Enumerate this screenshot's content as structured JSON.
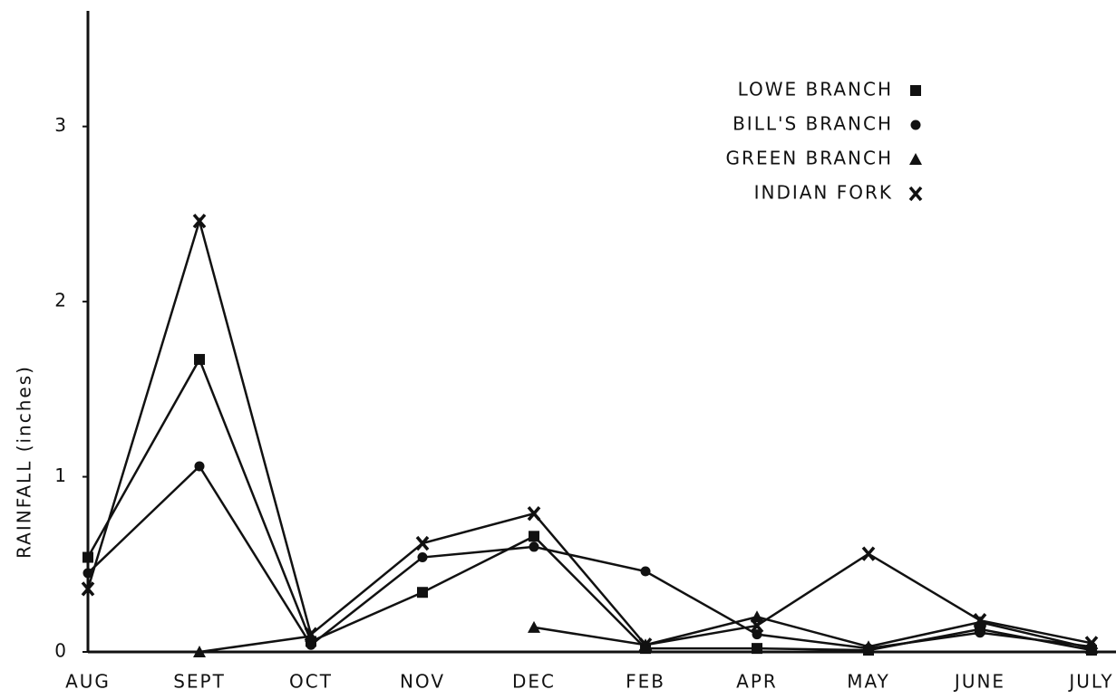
{
  "chart_data": {
    "type": "line",
    "y_label": "RAINFALL (inches)",
    "categories": [
      "AUG",
      "SEPT",
      "OCT",
      "NOV",
      "DEC",
      "FEB",
      "APR",
      "MAY",
      "JUNE",
      "JULY"
    ],
    "series": [
      {
        "name": "LOWE BRANCH",
        "color": "#111111",
        "marker": "square",
        "values": [
          0.54,
          1.67,
          0.06,
          0.34,
          0.66,
          0.02,
          0.02,
          0.01,
          0.13,
          0.01
        ]
      },
      {
        "name": "BILL'S BRANCH",
        "color": "#111111",
        "marker": "circle",
        "values": [
          0.45,
          1.06,
          0.04,
          0.54,
          0.6,
          0.46,
          0.1,
          0.02,
          0.11,
          0.03
        ]
      },
      {
        "name": "GREEN BRANCH",
        "color": "#111111",
        "marker": "triangle",
        "values": [
          null,
          0,
          0.09,
          null,
          0.14,
          0.04,
          0.2,
          0.03,
          0.17,
          0.02
        ]
      },
      {
        "name": "INDIAN FORK",
        "color": "#111111",
        "marker": "x",
        "values": [
          0.36,
          2.46,
          0.1,
          0.62,
          0.79,
          0.04,
          0.15,
          0.56,
          0.18,
          0.05
        ]
      }
    ],
    "ylim": [
      0,
      3.66
    ],
    "yticks": [
      0,
      1,
      2,
      3
    ],
    "grid": false,
    "legend": "top-right"
  }
}
